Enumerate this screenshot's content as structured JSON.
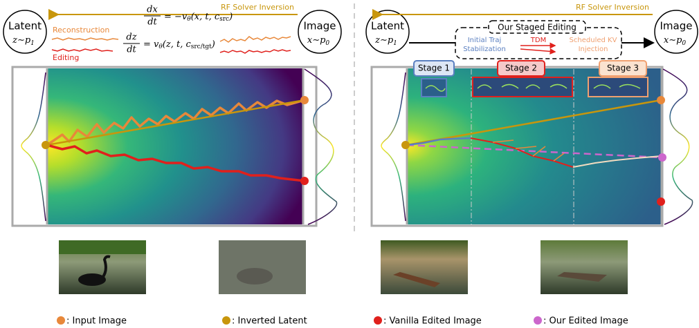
{
  "left": {
    "latent": {
      "label": "Latent",
      "dist": "z∼p",
      "sub": "1"
    },
    "image": {
      "label": "Image",
      "dist": "x∼p",
      "sub": "0"
    },
    "inversion": "RF Solver Inversion",
    "reconstruction": "Reconstruction",
    "editing": "Editing",
    "eq1": {
      "num": "dx",
      "den": "dt",
      "rhs": "= −v",
      "theta": "θ",
      "args": "(x, t, c",
      "cond": "src",
      "close": ")"
    },
    "eq2": {
      "num": "dz",
      "den": "dt",
      "rhs": "= v",
      "theta": "θ",
      "args": "(z, t, c",
      "cond": "src/tgt",
      "close": ")"
    }
  },
  "right": {
    "latent": {
      "label": "Latent",
      "dist": "z∼p",
      "sub": "1"
    },
    "image": {
      "label": "Image",
      "dist": "x∼p",
      "sub": "0"
    },
    "inversion": "RF Solver Inversion",
    "staged": "Our Staged Editing",
    "stabilization": [
      "Initial Traj",
      "Stabilization"
    ],
    "tdm": "TDM",
    "injection": [
      "Scheduled KV",
      "Injection"
    ],
    "stages": [
      "Stage 1",
      "Stage 2",
      "Stage 3"
    ]
  },
  "legend": [
    ": Input Image",
    ": Inverted Latent",
    ": Vanilla Edited Image",
    ": Our Edited Image"
  ]
}
